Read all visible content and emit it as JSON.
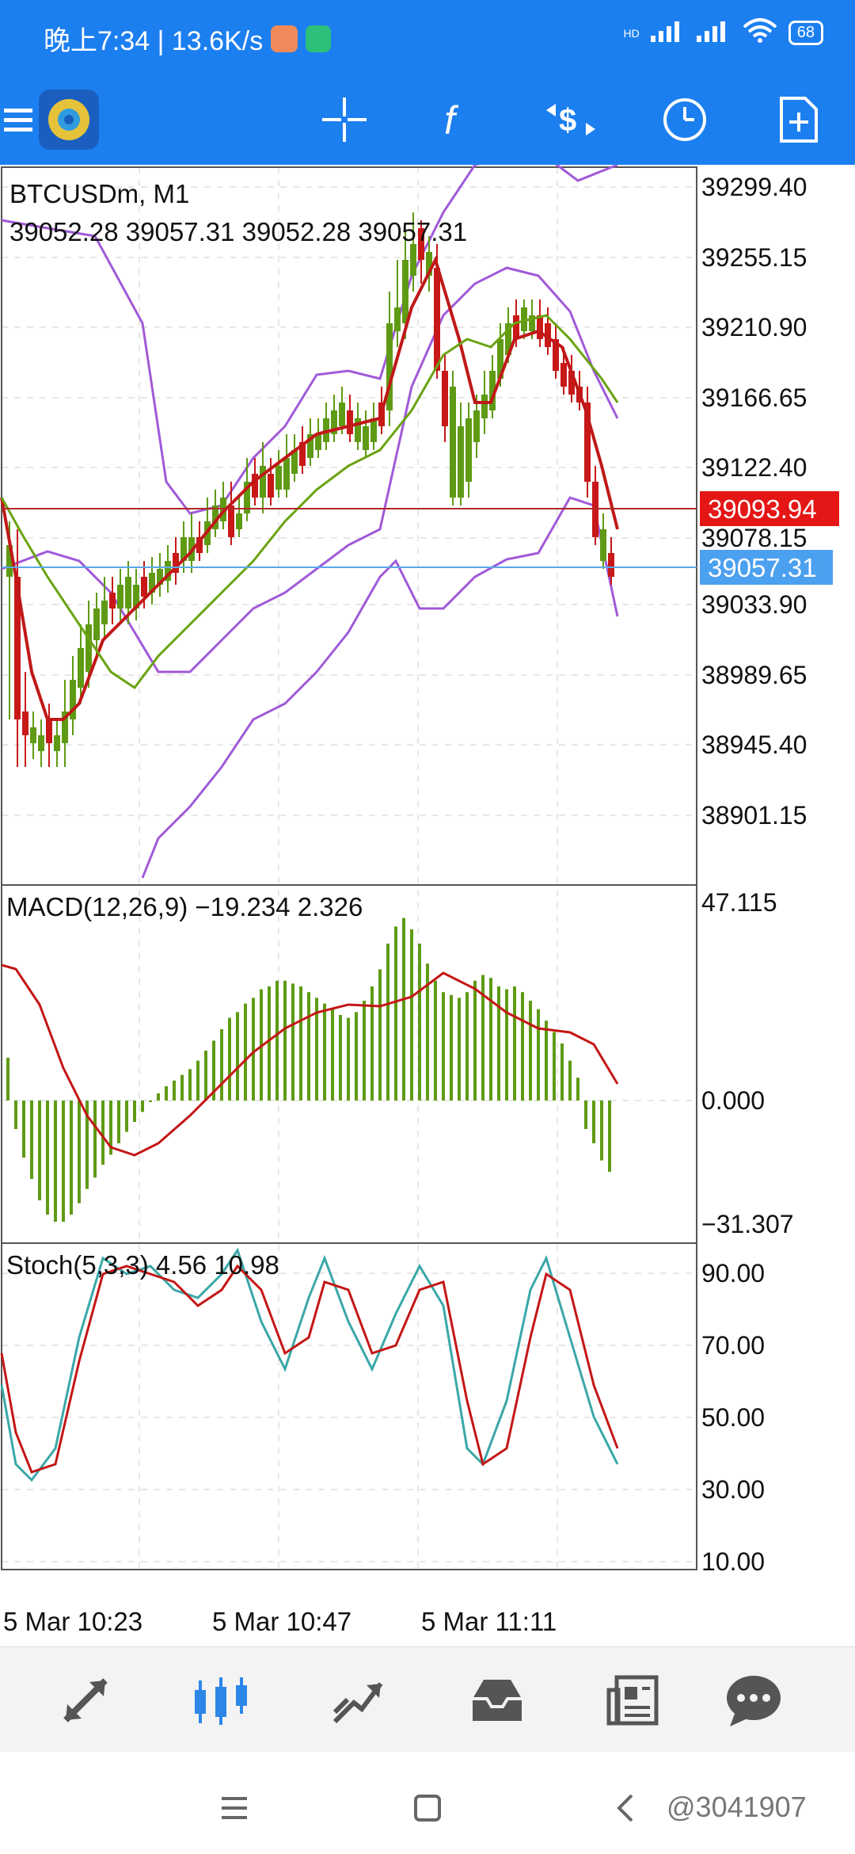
{
  "status_bar": {
    "time_text": "晚上7:34 | 13.6K/s",
    "network_label": "HD",
    "battery": "68"
  },
  "toolbar": {
    "icons": [
      "menu-icon",
      "app-logo",
      "crosshair-icon",
      "function-icon",
      "trade-icon",
      "clock-icon",
      "new-document-icon"
    ]
  },
  "chart": {
    "symbol_label": "BTCUSDm, M1",
    "ohlc_text": "39052.28 39057.31 39052.28 39057.31",
    "price_axis": [
      "39299.40",
      "39255.15",
      "39210.90",
      "39166.65",
      "39122.40",
      "39078.15",
      "39033.90",
      "38989.65",
      "38945.40",
      "38901.15"
    ],
    "ask_line_label": "39093.94",
    "bid_line_label": "39057.31",
    "colors": {
      "ask": "#e31a1a",
      "bid": "#4ba0f0",
      "bollinger": "#a05ad8",
      "ma_fast": "#c01818",
      "ma_slow": "#6aa312",
      "bull": "#5f9a14",
      "bear": "#c81818"
    }
  },
  "macd": {
    "label": "MACD(12,26,9) −19.234 2.326",
    "axis": [
      "47.115",
      "0.000",
      "−31.307"
    ]
  },
  "stoch": {
    "label": "Stoch(5,3,3) 4.56 10.98",
    "axis": [
      "90.00",
      "70.00",
      "50.00",
      "30.00",
      "10.00"
    ]
  },
  "time_axis": [
    "5 Mar 10:23",
    "5 Mar 10:47",
    "5 Mar 11:11"
  ],
  "bottom_nav": [
    "quotes-icon",
    "chart-icon",
    "trade-icon",
    "history-icon",
    "news-icon",
    "chat-icon"
  ],
  "watermark": "@3041907"
}
